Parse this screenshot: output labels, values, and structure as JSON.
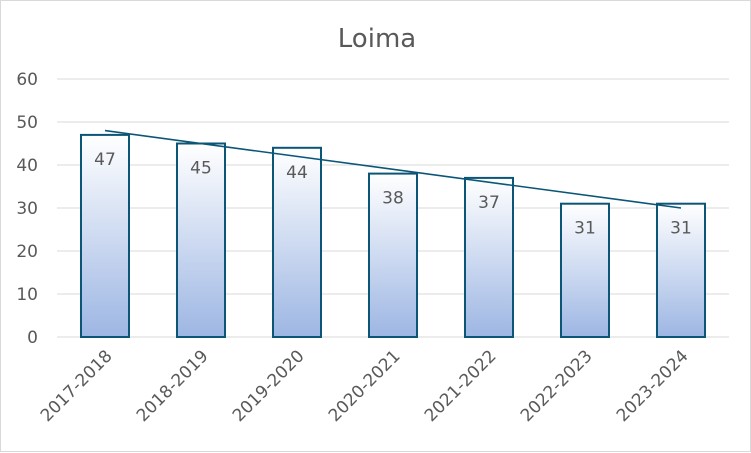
{
  "chart_data": {
    "type": "bar",
    "title": "Loima",
    "categories": [
      "2017-2018",
      "2018-2019",
      "2019-2020",
      "2020-2021",
      "2021-2022",
      "2022-2023",
      "2023-2024"
    ],
    "values": [
      47,
      45,
      44,
      38,
      37,
      31,
      31
    ],
    "data_labels": [
      "47",
      "45",
      "44",
      "38",
      "37",
      "31",
      "31"
    ],
    "ylim": [
      0,
      60
    ],
    "yticks": [
      0,
      10,
      20,
      30,
      40,
      50,
      60
    ],
    "ytick_labels": [
      "0",
      "10",
      "20",
      "30",
      "40",
      "50",
      "60"
    ],
    "grid": true,
    "trendline": {
      "type": "linear",
      "start": 48,
      "end": 30
    },
    "colors": {
      "bar_top": "#ffffff",
      "bar_bottom": "#9db6e3",
      "bar_border": "#0b5677",
      "trendline": "#0b5677",
      "grid": "#d9d9d9",
      "text": "#595959"
    }
  }
}
